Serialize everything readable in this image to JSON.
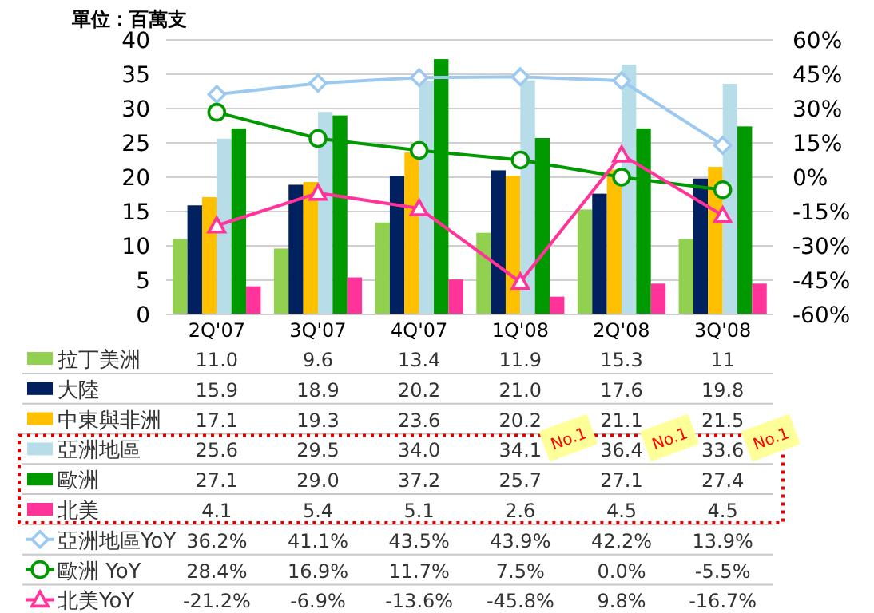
{
  "chart_data": {
    "type": "bar",
    "ylabel": "單位：百萬支",
    "categories": [
      "2Q'07",
      "3Q'07",
      "4Q'07",
      "1Q'08",
      "2Q'08",
      "3Q'08"
    ],
    "series": [
      {
        "name": "拉丁美洲",
        "color": "#92d050",
        "values": [
          11.0,
          9.6,
          13.4,
          11.9,
          15.3,
          11
        ],
        "value_labels": [
          "11.0",
          "9.6",
          "13.4",
          "11.9",
          "15.3",
          "11"
        ]
      },
      {
        "name": "大陸",
        "color": "#002060",
        "values": [
          15.9,
          18.9,
          20.2,
          21.0,
          17.6,
          19.8
        ],
        "value_labels": [
          "15.9",
          "18.9",
          "20.2",
          "21.0",
          "17.6",
          "19.8"
        ]
      },
      {
        "name": "中東與非洲",
        "color": "#ffc000",
        "values": [
          17.1,
          19.3,
          23.6,
          20.2,
          21.1,
          21.5
        ],
        "value_labels": [
          "17.1",
          "19.3",
          "23.6",
          "20.2",
          "21.1",
          "21.5"
        ]
      },
      {
        "name": "亞洲地區",
        "color": "#b7dde8",
        "values": [
          25.6,
          29.5,
          34.0,
          34.1,
          36.4,
          33.6
        ],
        "value_labels": [
          "25.6",
          "29.5",
          "34.0",
          "34.1",
          "36.4",
          "33.6"
        ]
      },
      {
        "name": "歐洲",
        "color": "#009900",
        "values": [
          27.1,
          29.0,
          37.2,
          25.7,
          27.1,
          27.4
        ],
        "value_labels": [
          "27.1",
          "29.0",
          "37.2",
          "25.7",
          "27.1",
          "27.4"
        ]
      },
      {
        "name": "北美",
        "color": "#ff3399",
        "values": [
          4.1,
          5.4,
          5.1,
          2.6,
          4.5,
          4.5
        ],
        "value_labels": [
          "4.1",
          "5.4",
          "5.1",
          "2.6",
          "4.5",
          "4.5"
        ]
      },
      {
        "name": "亞洲地區YoY",
        "type": "line",
        "axis": "y2",
        "marker": "diamond",
        "color": "#9dc9f0",
        "values": [
          36.2,
          41.1,
          43.5,
          43.9,
          42.2,
          13.9
        ],
        "value_labels": [
          "36.2%",
          "41.1%",
          "43.5%",
          "43.9%",
          "42.2%",
          "13.9%"
        ]
      },
      {
        "name": "歐洲 YoY",
        "type": "line",
        "axis": "y2",
        "marker": "circle",
        "color": "#009900",
        "values": [
          28.4,
          16.9,
          11.7,
          7.5,
          0.0,
          -5.5
        ],
        "value_labels": [
          "28.4%",
          "16.9%",
          "11.7%",
          "7.5%",
          "0.0%",
          "-5.5%"
        ]
      },
      {
        "name": "北美YoY",
        "type": "line",
        "axis": "y2",
        "marker": "triangle",
        "color": "#ff3399",
        "values": [
          -21.2,
          -6.9,
          -13.6,
          -45.8,
          9.8,
          -16.7
        ],
        "value_labels": [
          "-21.2%",
          "-6.9%",
          "-13.6%",
          "-45.8%",
          "9.8%",
          "-16.7%"
        ]
      }
    ],
    "ylim": [
      0,
      40
    ],
    "yticks": [
      0,
      5,
      10,
      15,
      20,
      25,
      30,
      35,
      40
    ],
    "y2lim": [
      -60,
      60
    ],
    "y2ticks": [
      {
        "value": -60,
        "label": "-60%"
      },
      {
        "value": -45,
        "label": "-45%"
      },
      {
        "value": -30,
        "label": "-30%"
      },
      {
        "value": -15,
        "label": "-15%"
      },
      {
        "value": 0,
        "label": "0%"
      },
      {
        "value": 15,
        "label": "15%"
      },
      {
        "value": 30,
        "label": "30%"
      },
      {
        "value": 45,
        "label": "45%"
      },
      {
        "value": 60,
        "label": "60%"
      }
    ],
    "grid": "y",
    "legend": "bottom",
    "line_style": "solid",
    "annotations": [
      "No.1",
      "No.1",
      "No.1"
    ]
  }
}
